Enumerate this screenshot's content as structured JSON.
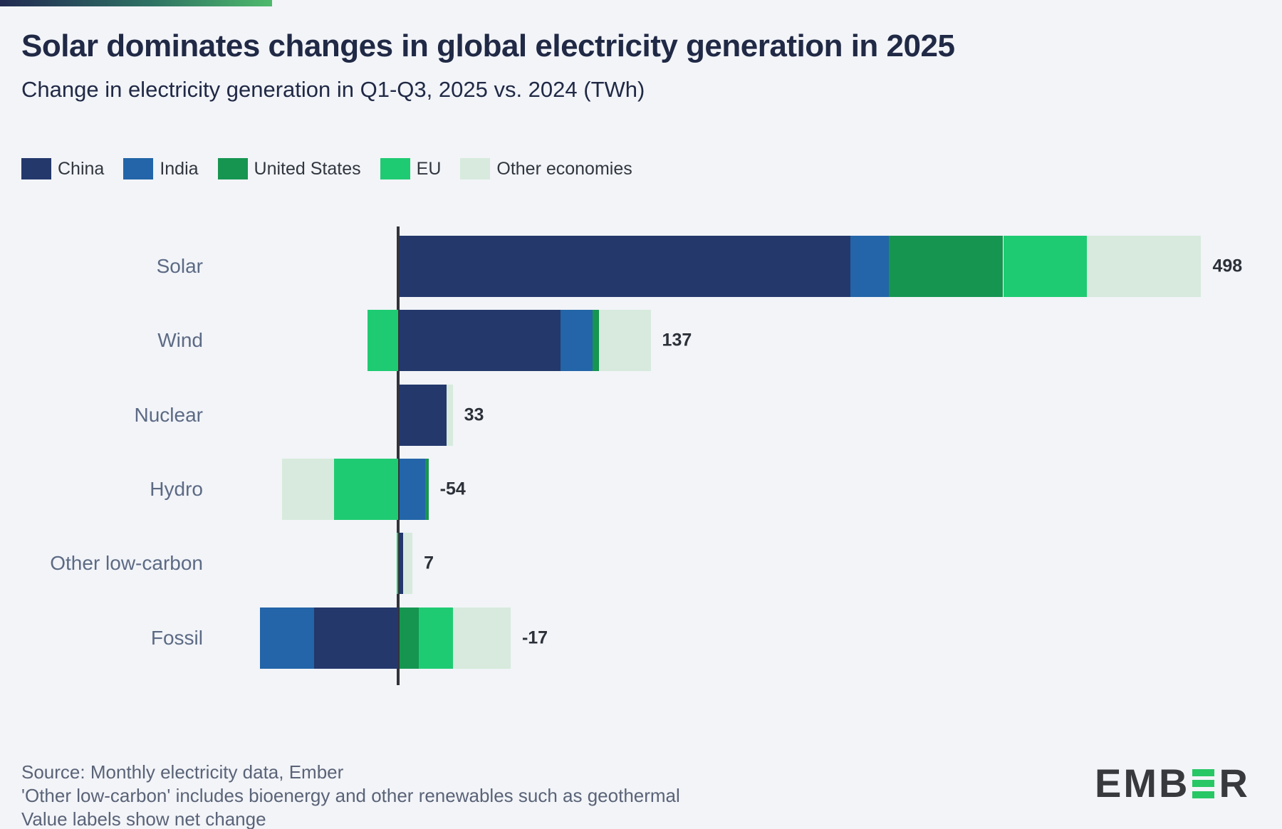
{
  "header": {
    "title": "Solar dominates changes in global electricity generation in 2025",
    "subtitle": "Change in electricity generation in Q1-Q3, 2025 vs. 2024 (TWh)"
  },
  "legend": [
    {
      "label": "China",
      "color": "#24386b"
    },
    {
      "label": "India",
      "color": "#2365a8"
    },
    {
      "label": "United States",
      "color": "#169551"
    },
    {
      "label": "EU",
      "color": "#1fcb72"
    },
    {
      "label": "Other economies",
      "color": "#d7eadd"
    }
  ],
  "chart_data": {
    "type": "bar",
    "orientation": "horizontal",
    "unit": "TWh",
    "title": "Change in electricity generation in Q1-Q3, 2025 vs. 2024 (TWh)",
    "note": "Value labels show net change",
    "series_names": [
      "China",
      "India",
      "United States",
      "EU",
      "Other economies"
    ],
    "colors": {
      "China": "#24386b",
      "India": "#2365a8",
      "United States": "#169551",
      "EU": "#1fcb72",
      "Other economies": "#d7eadd"
    },
    "axis_color": "#32333b",
    "rows": [
      {
        "label": "Solar",
        "net": 498,
        "net_label": "498",
        "segments": [
          {
            "series": "China",
            "value": 280
          },
          {
            "series": "India",
            "value": 24
          },
          {
            "series": "United States",
            "value": 71
          },
          {
            "series": "EU",
            "value": 52
          },
          {
            "series": "Other economies",
            "value": 71
          }
        ]
      },
      {
        "label": "Wind",
        "net": 137,
        "net_label": "137",
        "segments": [
          {
            "series": "EU",
            "value": -19
          },
          {
            "series": "China",
            "value": 100
          },
          {
            "series": "India",
            "value": 20
          },
          {
            "series": "United States",
            "value": 4
          },
          {
            "series": "Other economies",
            "value": 32
          }
        ]
      },
      {
        "label": "Nuclear",
        "net": 33,
        "net_label": "33",
        "segments": [
          {
            "series": "China",
            "value": 29
          },
          {
            "series": "Other economies",
            "value": 4
          }
        ]
      },
      {
        "label": "Hydro",
        "net": -54,
        "net_label": "-54",
        "segments": [
          {
            "series": "EU",
            "value": -40
          },
          {
            "series": "Other economies",
            "value": -32
          },
          {
            "series": "India",
            "value": 16
          },
          {
            "series": "United States",
            "value": 2
          }
        ]
      },
      {
        "label": "Other low-carbon",
        "net": 7,
        "net_label": "7",
        "segments": [
          {
            "series": "EU",
            "value": -1
          },
          {
            "series": "China",
            "value": 2
          },
          {
            "series": "Other economies",
            "value": 6
          }
        ]
      },
      {
        "label": "Fossil",
        "net": -17,
        "net_label": "-17",
        "segments": [
          {
            "series": "China",
            "value": -52
          },
          {
            "series": "India",
            "value": -34
          },
          {
            "series": "United States",
            "value": 12
          },
          {
            "series": "EU",
            "value": 21
          },
          {
            "series": "Other economies",
            "value": 36
          }
        ]
      }
    ]
  },
  "footer": {
    "line1": "Source: Monthly electricity data, Ember",
    "line2": "'Other low-carbon' includes bioenergy and other renewables such as geothermal",
    "line3": "Value labels show net change"
  },
  "logo": {
    "text_left": "EMB",
    "text_right": "R",
    "green": "#27c765"
  }
}
